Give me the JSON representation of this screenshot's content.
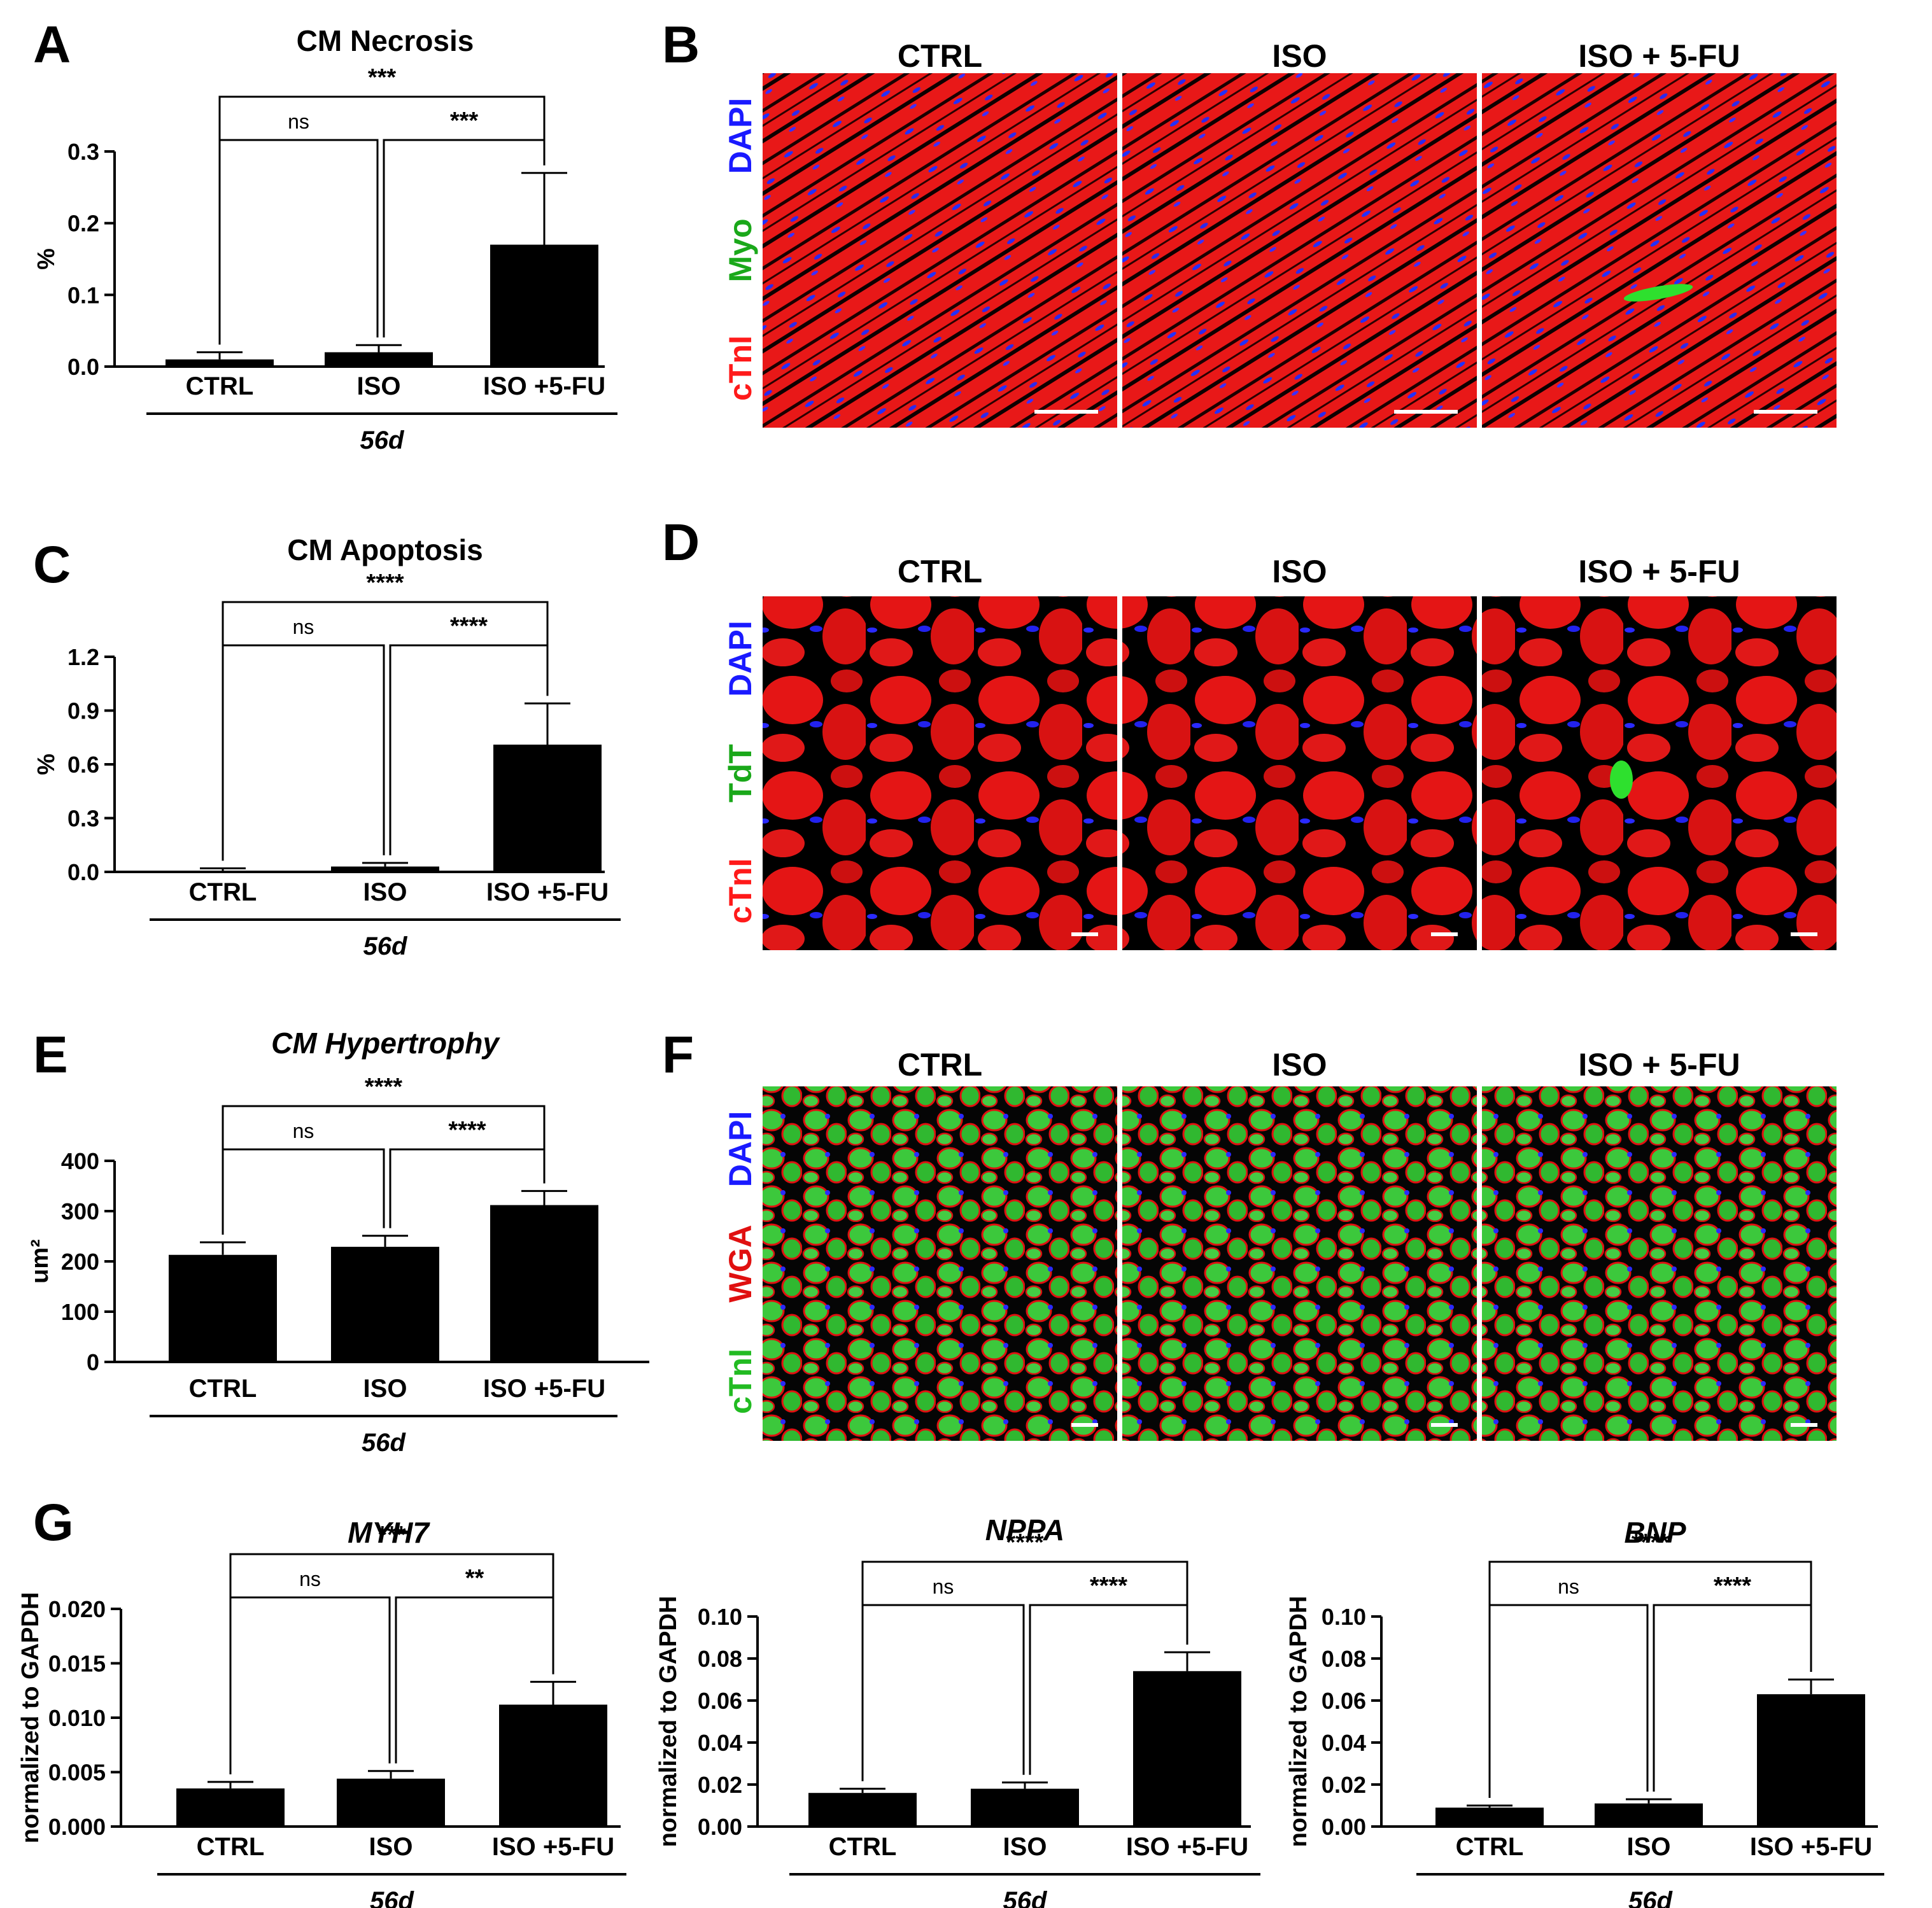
{
  "panel_labels": [
    "A",
    "B",
    "C",
    "D",
    "E",
    "F",
    "G"
  ],
  "colors": {
    "bar": "#000000",
    "cTnI_red": "#ff1a1a",
    "cTnI_green": "#22bb22",
    "DAPI": "#1a1aff",
    "Myo": "#1aa81a",
    "TdT": "#1aa81a",
    "WGA": "#e01010"
  },
  "chart_data": [
    {
      "id": "A",
      "type": "bar",
      "title": "CM Necrosis",
      "title_italic": false,
      "ylabel": "%",
      "categories": [
        "CTRL",
        "ISO",
        "ISO +5-FU"
      ],
      "xgroup_label": "56d",
      "values": [
        0.01,
        0.02,
        0.17
      ],
      "errors": [
        0.01,
        0.01,
        0.1
      ],
      "ylim": [
        0,
        0.3
      ],
      "yticks": [
        "0.0",
        "0.1",
        "0.2",
        "0.3"
      ],
      "comparisons": [
        {
          "a": 0,
          "b": 1,
          "label": "ns"
        },
        {
          "a": 1,
          "b": 2,
          "label": "***"
        },
        {
          "a": 0,
          "b": 2,
          "label": "***"
        }
      ]
    },
    {
      "id": "C",
      "type": "bar",
      "title": "CM Apoptosis",
      "title_italic": false,
      "ylabel": "%",
      "categories": [
        "CTRL",
        "ISO",
        "ISO +5-FU"
      ],
      "xgroup_label": "56d",
      "values": [
        0.003,
        0.03,
        0.71
      ],
      "errors": [
        0.017,
        0.02,
        0.23
      ],
      "ylim": [
        0,
        1.2
      ],
      "yticks": [
        "0.0",
        "0.3",
        "0.6",
        "0.9",
        "1.2"
      ],
      "comparisons": [
        {
          "a": 0,
          "b": 1,
          "label": "ns"
        },
        {
          "a": 1,
          "b": 2,
          "label": "****"
        },
        {
          "a": 0,
          "b": 2,
          "label": "****"
        }
      ]
    },
    {
      "id": "E",
      "type": "bar",
      "title": "CM Hypertrophy",
      "title_italic": true,
      "ylabel": "um²",
      "categories": [
        "CTRL",
        "ISO",
        "ISO +5-FU"
      ],
      "xgroup_label": "56d",
      "values": [
        213,
        229,
        312
      ],
      "errors": [
        25,
        22,
        28
      ],
      "ylim": [
        0,
        400
      ],
      "yticks": [
        "0",
        "100",
        "200",
        "300",
        "400"
      ],
      "comparisons": [
        {
          "a": 0,
          "b": 1,
          "label": "ns"
        },
        {
          "a": 1,
          "b": 2,
          "label": "****"
        },
        {
          "a": 0,
          "b": 2,
          "label": "****"
        }
      ]
    },
    {
      "id": "G1",
      "type": "bar",
      "title": "MYH7",
      "title_italic": true,
      "ylabel": "normalized to GAPDH",
      "categories": [
        "CTRL",
        "ISO",
        "ISO +5-FU"
      ],
      "xgroup_label": "56d",
      "values": [
        0.0035,
        0.0044,
        0.0112
      ],
      "errors": [
        0.0006,
        0.0007,
        0.0021
      ],
      "ylim": [
        0,
        0.02
      ],
      "yticks": [
        "0.000",
        "0.005",
        "0.010",
        "0.015",
        "0.020"
      ],
      "comparisons": [
        {
          "a": 0,
          "b": 1,
          "label": "ns"
        },
        {
          "a": 1,
          "b": 2,
          "label": "**"
        },
        {
          "a": 0,
          "b": 2,
          "label": "***"
        }
      ]
    },
    {
      "id": "G2",
      "type": "bar",
      "title": "NPPA",
      "title_italic": true,
      "ylabel": "normalized to GAPDH",
      "categories": [
        "CTRL",
        "ISO",
        "ISO +5-FU"
      ],
      "xgroup_label": "56d",
      "values": [
        0.016,
        0.018,
        0.074
      ],
      "errors": [
        0.002,
        0.003,
        0.009
      ],
      "ylim": [
        0,
        0.1
      ],
      "yticks": [
        "0.00",
        "0.02",
        "0.04",
        "0.06",
        "0.08",
        "0.10"
      ],
      "comparisons": [
        {
          "a": 0,
          "b": 1,
          "label": "ns"
        },
        {
          "a": 1,
          "b": 2,
          "label": "****"
        },
        {
          "a": 0,
          "b": 2,
          "label": "****"
        }
      ]
    },
    {
      "id": "G3",
      "type": "bar",
      "title": "BNP",
      "title_italic": true,
      "ylabel": "normalized to GAPDH",
      "categories": [
        "CTRL",
        "ISO",
        "ISO +5-FU"
      ],
      "xgroup_label": "56d",
      "values": [
        0.009,
        0.011,
        0.063
      ],
      "errors": [
        0.001,
        0.002,
        0.007
      ],
      "ylim": [
        0,
        0.1
      ],
      "yticks": [
        "0.00",
        "0.02",
        "0.04",
        "0.06",
        "0.08",
        "0.10"
      ],
      "comparisons": [
        {
          "a": 0,
          "b": 1,
          "label": "ns"
        },
        {
          "a": 1,
          "b": 2,
          "label": "****"
        },
        {
          "a": 0,
          "b": 2,
          "label": "****"
        }
      ]
    }
  ],
  "micrographs": [
    {
      "id": "B",
      "columns": [
        "CTRL",
        "ISO",
        "ISO + 5-FU"
      ],
      "stains": [
        "cTnI",
        "Myo",
        "DAPI"
      ]
    },
    {
      "id": "D",
      "columns": [
        "CTRL",
        "ISO",
        "ISO + 5-FU"
      ],
      "stains": [
        "cTnI",
        "TdT",
        "DAPI"
      ]
    },
    {
      "id": "F",
      "columns": [
        "CTRL",
        "ISO",
        "ISO + 5-FU"
      ],
      "stains": [
        "cTnI",
        "WGA",
        "DAPI"
      ]
    }
  ]
}
